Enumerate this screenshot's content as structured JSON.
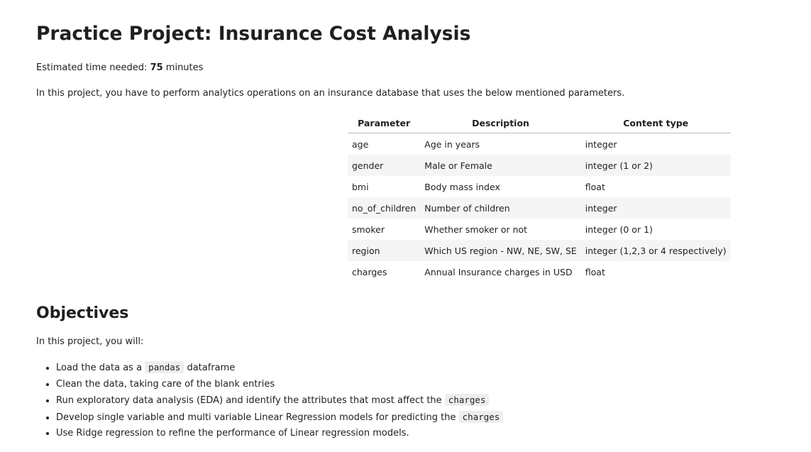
{
  "title": "Practice Project: Insurance Cost Analysis",
  "estimated": {
    "prefix": "Estimated time needed: ",
    "value": "75",
    "unit": " minutes"
  },
  "intro": "In this project, you have to perform analytics operations on an insurance database that uses the below mentioned parameters.",
  "table": {
    "headers": [
      "Parameter",
      "Description",
      "Content type"
    ],
    "rows": [
      [
        "age",
        "Age in years",
        "integer"
      ],
      [
        "gender",
        "Male or Female",
        "integer (1 or 2)"
      ],
      [
        "bmi",
        "Body mass index",
        "float"
      ],
      [
        "no_of_children",
        "Number of children",
        "integer"
      ],
      [
        "smoker",
        "Whether smoker or not",
        "integer (0 or 1)"
      ],
      [
        "region",
        "Which US region - NW, NE, SW, SE",
        "integer (1,2,3 or 4 respectively)"
      ],
      [
        "charges",
        "Annual Insurance charges in USD",
        "float"
      ]
    ]
  },
  "objectives": {
    "heading": "Objectives",
    "lead": "In this project, you will:",
    "items": [
      {
        "before": "Load the data as a ",
        "code": "pandas",
        "after": " dataframe"
      },
      {
        "before": "Clean the data, taking care of the blank entries",
        "code": "",
        "after": ""
      },
      {
        "before": "Run exploratory data analysis (EDA) and identify the attributes that most affect the ",
        "code": "charges",
        "after": ""
      },
      {
        "before": "Develop single variable and multi variable Linear Regression models for predicting the ",
        "code": "charges",
        "after": ""
      },
      {
        "before": "Use Ridge regression to refine the performance of Linear regression models.",
        "code": "",
        "after": ""
      }
    ]
  }
}
